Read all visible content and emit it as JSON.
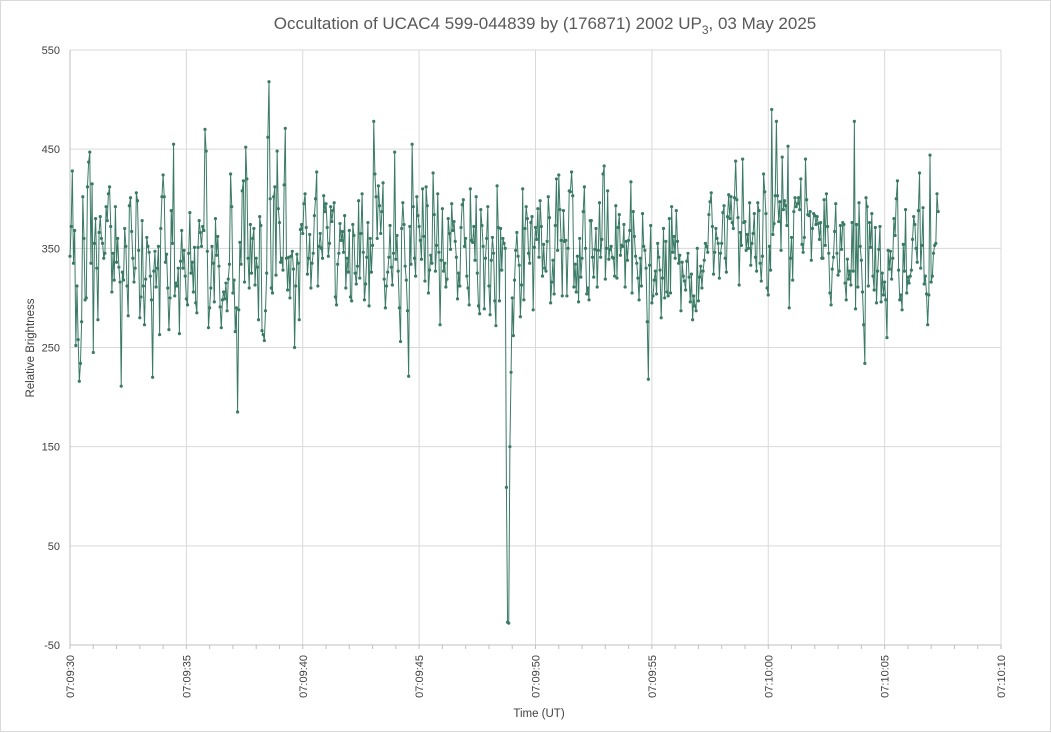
{
  "chart_data": {
    "type": "line",
    "title": "Occultation of UCAC4 599-044839 by (176871) 2002 UP",
    "title_subscript": "3",
    "title_suffix": ", 03 May 2025",
    "xlabel": "Time (UT)",
    "ylabel": "Relative Brightness",
    "ylim": [
      -50,
      550
    ],
    "yticks": [
      -50,
      50,
      150,
      250,
      350,
      450,
      550
    ],
    "xlim": [
      "07:09:30",
      "07:10:10"
    ],
    "xticks": [
      "07:09:30",
      "07:09:35",
      "07:09:40",
      "07:09:45",
      "07:09:50",
      "07:09:55",
      "07:10:00",
      "07:10:05",
      "07:10:10"
    ],
    "grid": true,
    "legend": "none",
    "series_color": "#3a7a66",
    "marker": "circle",
    "sample_interval_s": 0.05,
    "x_start": "07:09:30.00",
    "series": [
      {
        "values": [
          342,
          372,
          428,
          335,
          368,
          252,
          312,
          258,
          216,
          234,
          276,
          402,
          360,
          298,
          300,
          412,
          437,
          447,
          335,
          415,
          245,
          355,
          380,
          330,
          278,
          366,
          382,
          360,
          355,
          340,
          345,
          392,
          378,
          405,
          412,
          372,
          306,
          345,
          318,
          392,
          336,
          360,
          331,
          316,
          211,
          326,
          318,
          370,
          352,
          312,
          282,
          393,
          401,
          367,
          340,
          316,
          330,
          406,
          398,
          348,
          280,
          301,
          378,
          312,
          273,
          319,
          361,
          352,
          346,
          322,
          298,
          220,
          327,
          347,
          311,
          330,
          352,
          263,
          370,
          402,
          424,
          402,
          336,
          344,
          310,
          268,
          300,
          388,
          355,
          455,
          302,
          315,
          312,
          330,
          264,
          337,
          368,
          330,
          348,
          322,
          299,
          293,
          345,
          386,
          325,
          336,
          306,
          351,
          295,
          285,
          351,
          378,
          366,
          352,
          372,
          368,
          470,
          448,
          347,
          270,
          290,
          310,
          352,
          335,
          296,
          380,
          343,
          362,
          332,
          291,
          270,
          298,
          306,
          299,
          315,
          287,
          319,
          334,
          425,
          392,
          305,
          318,
          266,
          290,
          185,
          288,
          356,
          334,
          408,
          418,
          316,
          452,
          420,
          340,
          310,
          374,
          325,
          360,
          370,
          313,
          340,
          331,
          278,
          382,
          373,
          267,
          263,
          257,
          287,
          325,
          462,
          518,
          400,
          310,
          305,
          402,
          412,
          323,
          448,
          390,
          376,
          336,
          340,
          328,
          414,
          471,
          340,
          308,
          341,
          300,
          342,
          347,
          329,
          250,
          312,
          344,
          335,
          278,
          369,
          374,
          365,
          395,
          405,
          371,
          324,
          340,
          364,
          310,
          335,
          345,
          383,
          400,
          427,
          312,
          352,
          365,
          350,
          340,
          403,
          387,
          395,
          371,
          342,
          355,
          392,
          377,
          388,
          396,
          301,
          293,
          334,
          345,
          375,
          358,
          367,
          346,
          383,
          310,
          340,
          326,
          368,
          301,
          297,
          374,
          363,
          325,
          314,
          332,
          398,
          320,
          365,
          405,
          346,
          298,
          314,
          341,
          376,
          292,
          360,
          326,
          353,
          478,
          425,
          402,
          360,
          413,
          393,
          365,
          387,
          416,
          319,
          290,
          312,
          326,
          341,
          373,
          331,
          313,
          345,
          447,
          339,
          363,
          327,
          290,
          256,
          370,
          396,
          374,
          332,
          318,
          287,
          221,
          372,
          334,
          455,
          392,
          340,
          322,
          402,
          383,
          372,
          358,
          339,
          410,
          362,
          317,
          412,
          393,
          305,
          328,
          343,
          335,
          426,
          384,
          327,
          353,
          405,
          346,
          273,
          338,
          390,
          327,
          335,
          311,
          319,
          380,
          365,
          349,
          395,
          368,
          377,
          357,
          341,
          299,
          325,
          312,
          371,
          394,
          399,
          352,
          360,
          322,
          310,
          293,
          410,
          358,
          356,
          372,
          338,
          402,
          325,
          292,
          284,
          389,
          373,
          352,
          289,
          340,
          360,
          392,
          312,
          283,
          338,
          361,
          345,
          297,
          272,
          413,
          371,
          297,
          370,
          328,
          360,
          355,
          350,
          109,
          -27,
          -28,
          150,
          225,
          300,
          262,
          318,
          348,
          366,
          342,
          333,
          281,
          313,
          410,
          298,
          370,
          392,
          380,
          345,
          335,
          376,
          382,
          288,
          351,
          371,
          359,
          390,
          341,
          398,
          372,
          322,
          354,
          330,
          327,
          357,
          402,
          381,
          295,
          316,
          338,
          304,
          373,
          420,
          348,
          424,
          389,
          358,
          302,
          388,
          357,
          358,
          302,
          350,
          408,
          407,
          427,
          403,
          311,
          334,
          306,
          342,
          296,
          360,
          321,
          340,
          387,
          412,
          350,
          304,
          310,
          298,
          378,
          378,
          341,
          321,
          349,
          370,
          311,
          348,
          396,
          341,
          359,
          425,
          433,
          319,
          350,
          408,
          339,
          349,
          352,
          341,
          340,
          322,
          393,
          320,
          371,
          384,
          343,
          353,
          352,
          374,
          311,
          357,
          338,
          358,
          368,
          417,
          305,
          387,
          362,
          342,
          335,
          320,
          298,
          340,
          312,
          385,
          352,
          348,
          330,
          276,
          218,
          333,
          373,
          295,
          302,
          318,
          327,
          304,
          355,
          341,
          328,
          280,
          320,
          370,
          300,
          357,
          306,
          302,
          380,
          305,
          392,
          346,
          362,
          340,
          388,
          357,
          335,
          343,
          287,
          336,
          322,
          317,
          308,
          337,
          345,
          321,
          296,
          324,
          278,
          302,
          292,
          287,
          350,
          297,
          321,
          332,
          310,
          327,
          338,
          355,
          352,
          346,
          384,
          397,
          406,
          372,
          324,
          346,
          370,
          360,
          355,
          320,
          345,
          355,
          386,
          393,
          340,
          326,
          382,
          404,
          380,
          402,
          376,
          370,
          401,
          438,
          399,
          381,
          313,
          366,
          353,
          440,
          376,
          377,
          348,
          364,
          350,
          396,
          333,
          355,
          365,
          385,
          341,
          327,
          396,
          388,
          335,
          317,
          342,
          425,
          407,
          385,
          310,
          303,
          352,
          328,
          490,
          364,
          375,
          403,
          478,
          403,
          377,
          397,
          348,
          442,
          389,
          398,
          393,
          373,
          453,
          290,
          340,
          361,
          318,
          387,
          401,
          392,
          395,
          401,
          389,
          420,
          354,
          346,
          361,
          440,
          399,
          384,
          383,
          387,
          338,
          370,
          385,
          383,
          374,
          382,
          375,
          359,
          376,
          340,
          340,
          399,
          353,
          405,
          372,
          345,
          305,
          293,
          329,
          341,
          367,
          395,
          345,
          323,
          327,
          373,
          349,
          376,
          374,
          315,
          298,
          339,
          319,
          327,
          313,
          376,
          327,
          478,
          289,
          374,
          311,
          396,
          352,
          338,
          306,
          273,
          234,
          401,
          392,
          312,
          376,
          351,
          385,
          322,
          308,
          371,
          295,
          327,
          349,
          372,
          296,
          325,
          303,
          316,
          298,
          260,
          348,
          329,
          347,
          319,
          340,
          380,
          363,
          400,
          418,
          328,
          298,
          303,
          288,
          354,
          327,
          389,
          305,
          321,
          315,
          322,
          328,
          359,
          382,
          374,
          350,
          336,
          388,
          426,
          330,
          353,
          391,
          314,
          322,
          304,
          273,
          303,
          444,
          316,
          322,
          345,
          353,
          355,
          405,
          387
        ]
      }
    ]
  }
}
